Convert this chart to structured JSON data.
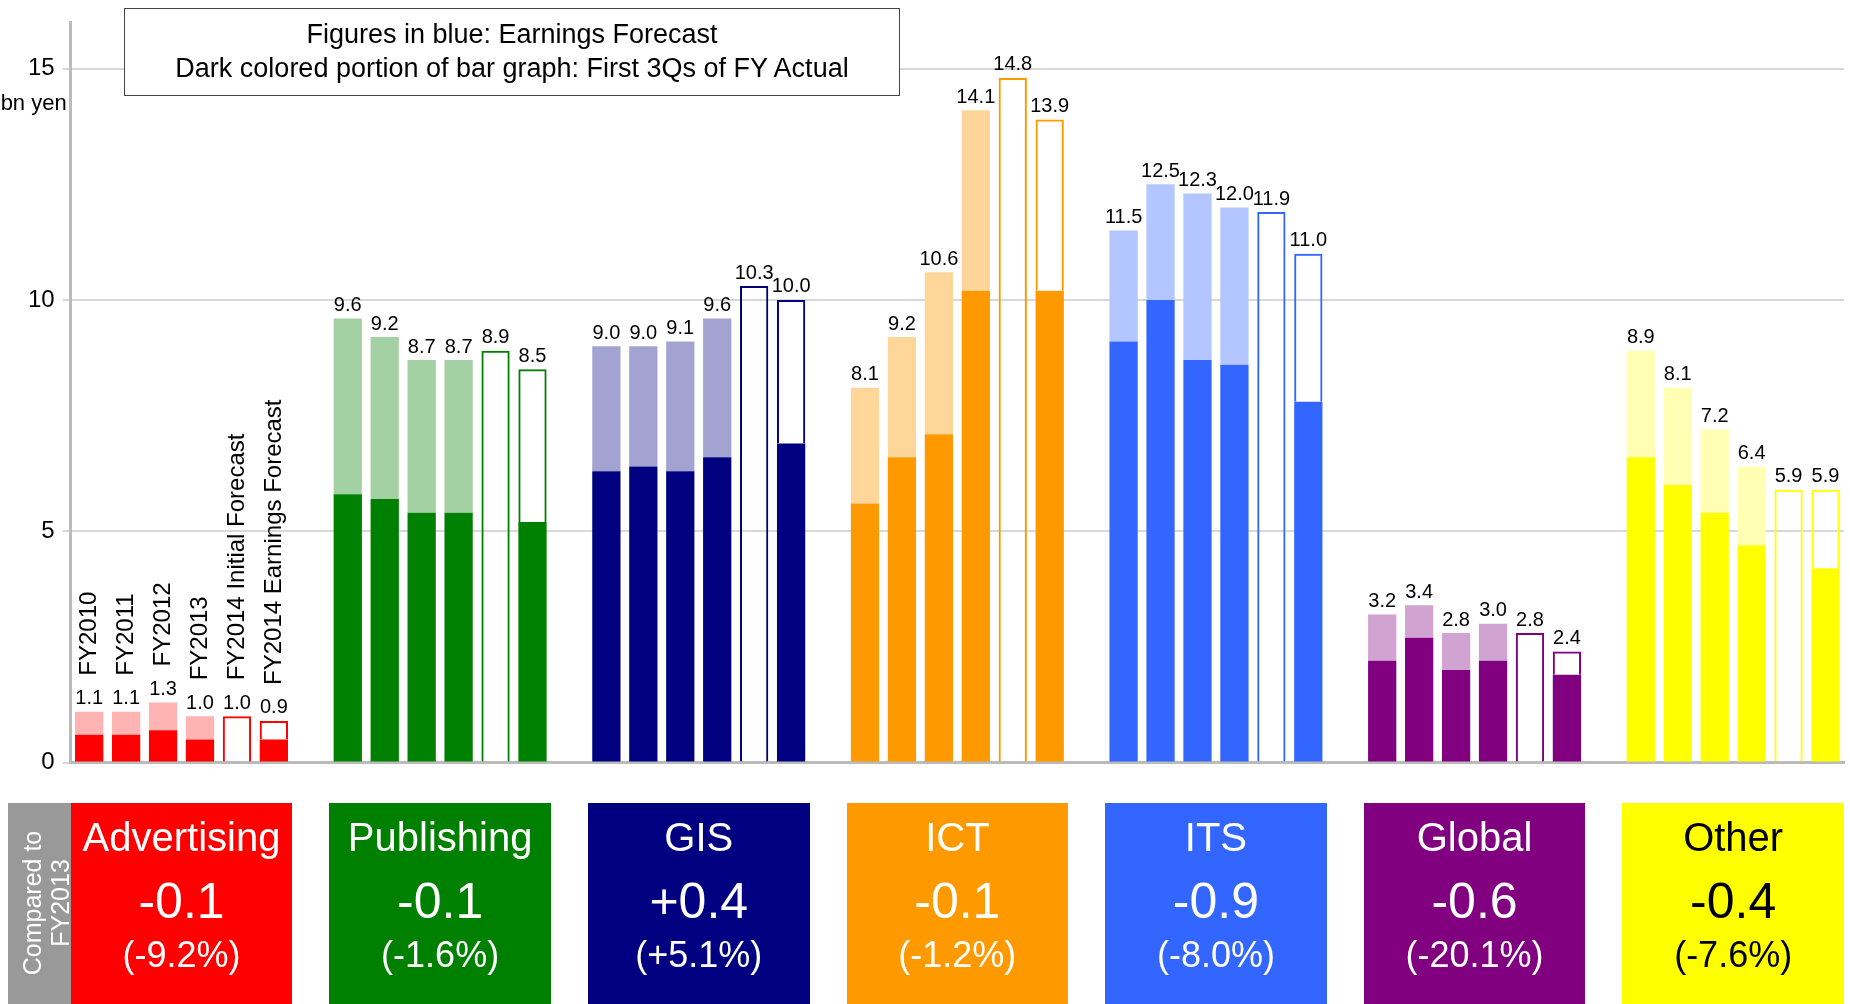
{
  "chart_data": {
    "type": "bar",
    "stacked": true,
    "ylabel": "bn yen",
    "ylim": [
      0,
      16
    ],
    "yticks": [
      0,
      5,
      10,
      15
    ],
    "grid": "y",
    "legend": false,
    "categories": [
      "FY2010",
      "FY2011",
      "FY2012",
      "FY2013",
      "FY2014 Initial Forecast",
      "FY2014 Earnings Forecast",
      null,
      null,
      null,
      null,
      null,
      null,
      null,
      null,
      null,
      null,
      null,
      null,
      null,
      null,
      null,
      null,
      null,
      null,
      null,
      null,
      null,
      null,
      null,
      null,
      null,
      null,
      null,
      null,
      null,
      null,
      null,
      null,
      null,
      null,
      null,
      null,
      null,
      null,
      null,
      null,
      null,
      null
    ],
    "series": [
      {
        "values": [
          0.6,
          0.6,
          0.7,
          0.5,
          null,
          0.5,
          null,
          5.8,
          5.7,
          5.4,
          5.4,
          null,
          5.2,
          null,
          6.3,
          6.4,
          6.3,
          6.6,
          null,
          6.9,
          null,
          5.6,
          6.6,
          7.1,
          10.2,
          null,
          10.2,
          null,
          9.1,
          10.0,
          8.7,
          8.6,
          null,
          7.8,
          null,
          2.2,
          2.7,
          2.0,
          2.2,
          null,
          1.9,
          null,
          6.6,
          6.0,
          5.4,
          4.7,
          null,
          4.2
        ],
        "colors": [
          "#ff0000",
          "#ff0000",
          "#ff0000",
          "#ff0000",
          "#ff0000",
          "#ff0000",
          null,
          "#008000",
          "#008000",
          "#008000",
          "#008000",
          "#008000",
          "#008000",
          null,
          "#000080",
          "#000080",
          "#000080",
          "#000080",
          "#000080",
          "#000080",
          null,
          "#ff9900",
          "#ff9900",
          "#ff9900",
          "#ff9900",
          "#ff9900",
          "#ff9900",
          null,
          "#3366ff",
          "#3366ff",
          "#3366ff",
          "#3366ff",
          "#3366ff",
          "#3366ff",
          null,
          "#800080",
          "#800080",
          "#800080",
          "#800080",
          "#800080",
          "#800080",
          null,
          "#ffff00",
          "#ffff00",
          "#ffff00",
          "#ffff00",
          "#ffff00",
          "#ffff00"
        ]
      },
      {
        "values": [
          0.5,
          0.5,
          0.6,
          0.5,
          1.0,
          0.4,
          null,
          3.8,
          3.5,
          3.3,
          3.3,
          8.9,
          3.3,
          null,
          2.7,
          2.6,
          2.8,
          3.0,
          10.3,
          3.1,
          null,
          2.5,
          2.6,
          3.5,
          3.9,
          14.8,
          3.7,
          null,
          2.4,
          2.5,
          3.6,
          3.4,
          11.9,
          3.2,
          null,
          1.0,
          0.7,
          0.8,
          0.8,
          2.8,
          0.5,
          null,
          2.3,
          2.1,
          1.8,
          1.7,
          5.9,
          1.7
        ],
        "colors": [
          "#ffb3b3",
          "#ffb3b3",
          "#ffb3b3",
          "#ffb3b3",
          "#ff0000",
          "#ff0000",
          null,
          "#a3d1a3",
          "#a3d1a3",
          "#a3d1a3",
          "#a3d1a3",
          "#008000",
          "#008000",
          null,
          "#a3a3d1",
          "#a3a3d1",
          "#a3a3d1",
          "#a3a3d1",
          "#000080",
          "#000080",
          null,
          "#ffd699",
          "#ffd699",
          "#ffd699",
          "#ffd699",
          "#ff9900",
          "#ff9900",
          null,
          "#b3c6ff",
          "#b3c6ff",
          "#b3c6ff",
          "#b3c6ff",
          "#3366ff",
          "#3366ff",
          null,
          "#d1a3d1",
          "#d1a3d1",
          "#d1a3d1",
          "#d1a3d1",
          "#800080",
          "#800080",
          null,
          "#ffffb3",
          "#ffffb3",
          "#ffffb3",
          "#ffffb3",
          "#ffff00",
          "#ffff00"
        ]
      }
    ],
    "totals": [
      "1.1",
      "1.1",
      "1.3",
      "1.0",
      "1.0",
      "0.9",
      null,
      "9.6",
      "9.2",
      "8.7",
      "8.7",
      "8.9",
      "8.5",
      null,
      "9.0",
      "9.0",
      "9.1",
      "9.6",
      "10.3",
      "10.0",
      null,
      "8.1",
      "9.2",
      "10.6",
      "14.1",
      "14.8",
      "13.9",
      null,
      "11.5",
      "12.5",
      "12.3",
      "12.0",
      "11.9",
      "11.0",
      null,
      "3.2",
      "3.4",
      "2.8",
      "3.0",
      "2.8",
      "2.4",
      null,
      "8.9",
      "8.1",
      "7.2",
      "6.4",
      "5.9",
      "5.9"
    ],
    "annotations": [
      "Figures in blue: Earnings Forecast",
      "Dark colored portion of bar graph: First 3Qs of FY Actual",
      "Compared to FY2013",
      "Advertising",
      "-0.1",
      "(-9.2%)",
      "Publishing",
      "-0.1",
      "(-1.6%)",
      "GIS",
      "+0.4",
      "(+5.1%)",
      "ICT",
      "-0.1",
      "(-1.2%)",
      "ITS",
      "-0.9",
      "(-8.0%)",
      "Global",
      "-0.6",
      "(-20.1%)",
      "Other",
      "-0.4",
      "(-7.6%)"
    ]
  }
}
